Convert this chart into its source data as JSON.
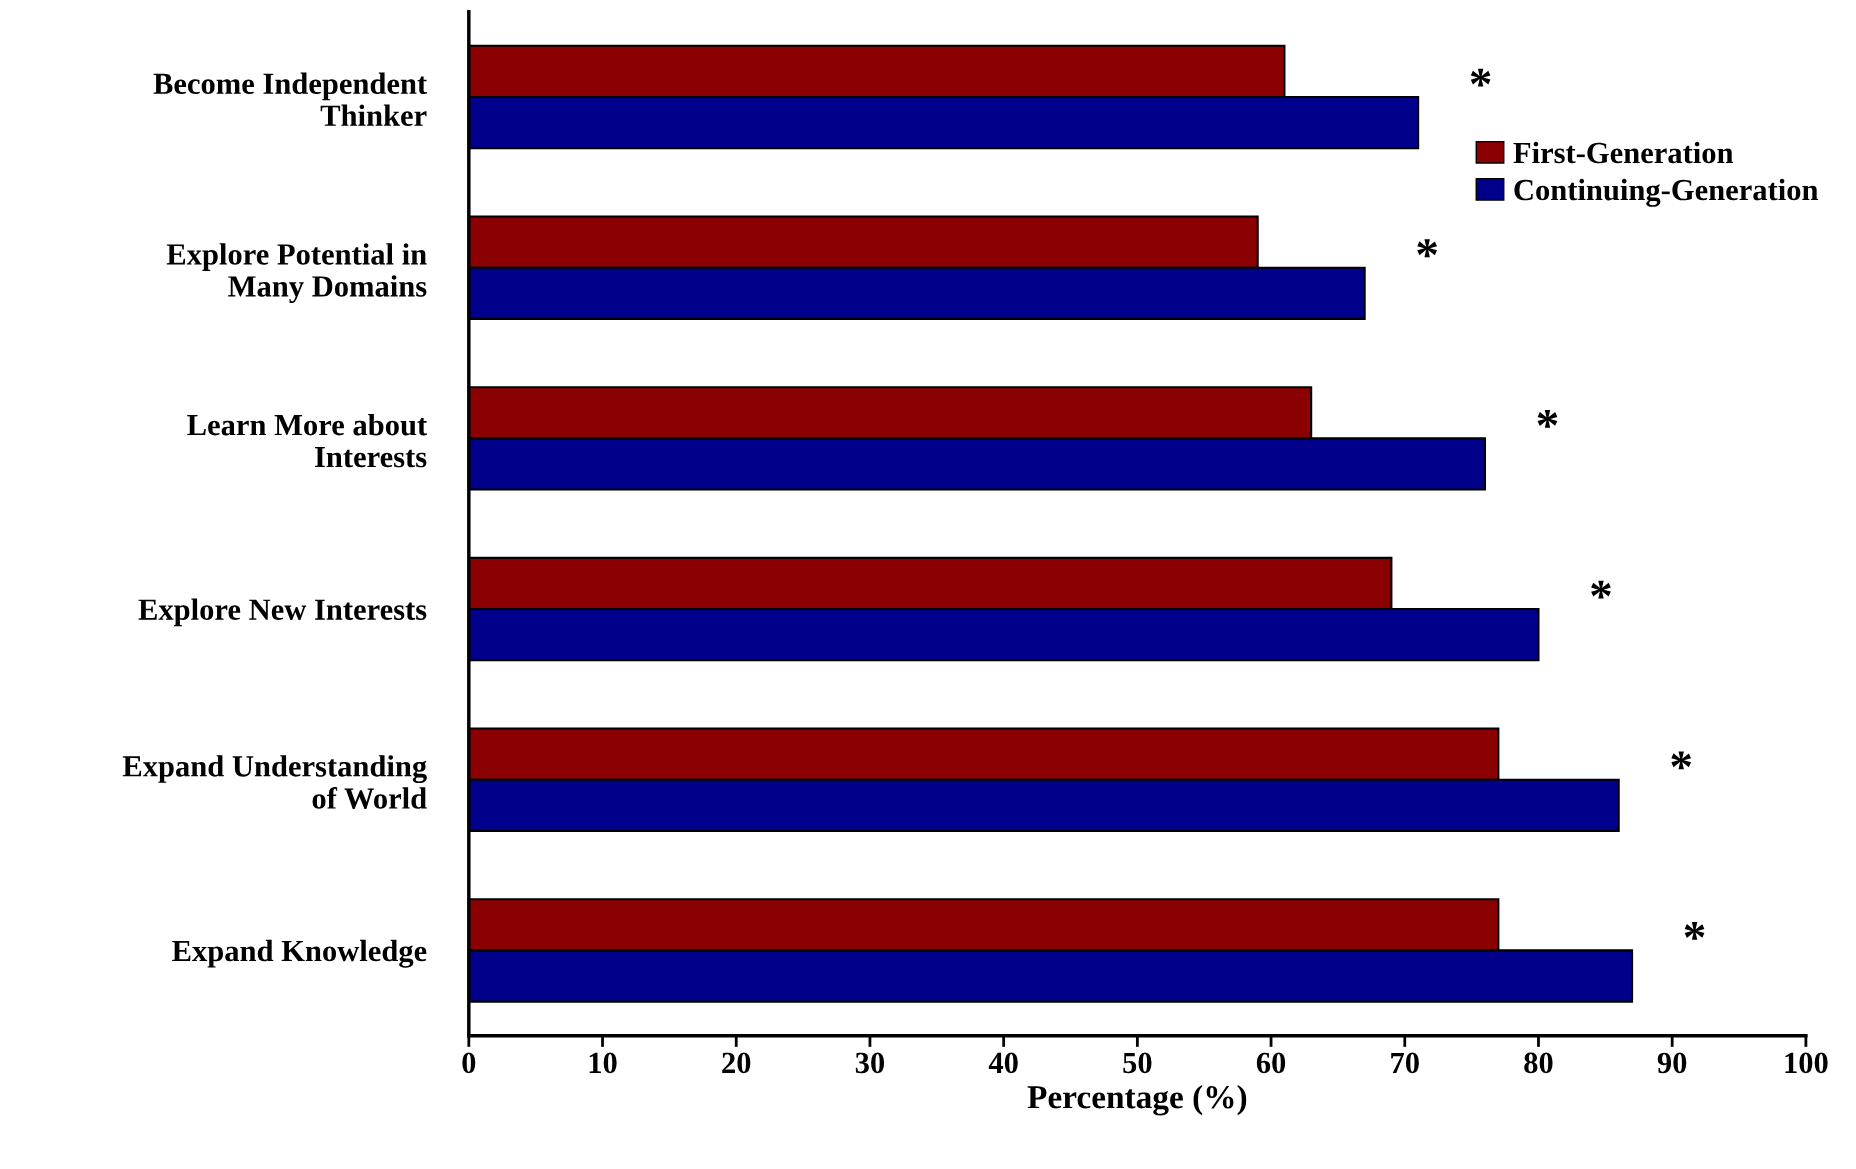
{
  "chart_data": {
    "type": "bar",
    "orientation": "horizontal",
    "xlabel": "Percentage (%)",
    "categories": [
      "Become Independent\nThinker",
      "Explore Potential in\nMany Domains",
      "Learn More about\nInterests",
      "Explore New Interests",
      "Expand Understanding\nof World",
      "Expand Knowledge"
    ],
    "series": [
      {
        "name": "First-Generation",
        "color": "#8b0000",
        "values": [
          61,
          59,
          63,
          69,
          77,
          77
        ]
      },
      {
        "name": "Continuing-Generation",
        "color": "#00008b",
        "values": [
          71,
          67,
          76,
          80,
          86,
          87
        ]
      }
    ],
    "xlim": [
      0,
      100
    ],
    "xticks": [
      0,
      10,
      20,
      30,
      40,
      50,
      60,
      70,
      80,
      90,
      100
    ],
    "annotations": [
      "*",
      "*",
      "*",
      "*",
      "*",
      "*"
    ],
    "legend": "top right",
    "grid": false
  }
}
